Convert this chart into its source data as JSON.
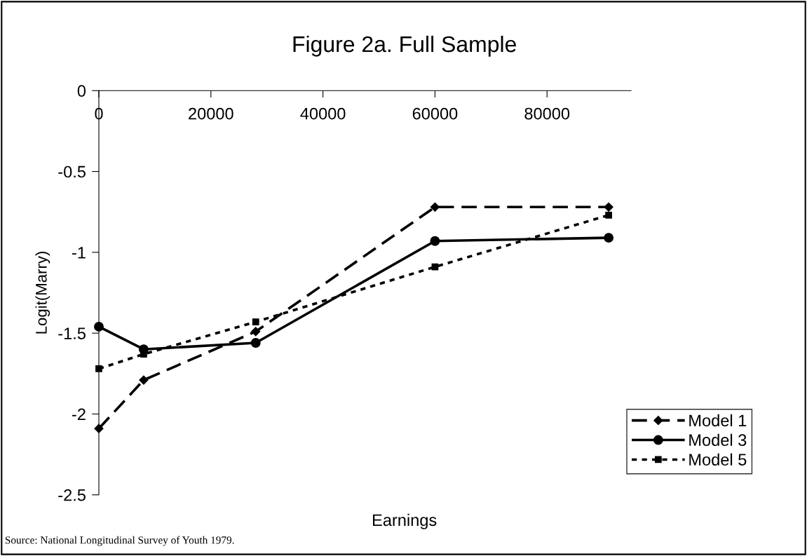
{
  "chart_data": {
    "type": "line",
    "title": "Figure 2a. Full Sample",
    "xlabel": "Earnings",
    "ylabel": "Logit(Marry)",
    "x": [
      0,
      8000,
      28000,
      60000,
      91000
    ],
    "series": [
      {
        "name": "Model 1",
        "color": "#000000",
        "line_style": "dashed",
        "marker": "diamond",
        "values": [
          -2.09,
          -1.79,
          -1.49,
          -0.72,
          -0.72
        ]
      },
      {
        "name": "Model 3",
        "color": "#000000",
        "line_style": "solid",
        "marker": "circle",
        "values": [
          -1.46,
          -1.6,
          -1.56,
          -0.93,
          -0.91
        ]
      },
      {
        "name": "Model 5",
        "color": "#000000",
        "line_style": "dotted",
        "marker": "square",
        "values": [
          -1.72,
          -1.63,
          -1.43,
          -1.09,
          -0.77
        ]
      }
    ],
    "xlim": [
      0,
      95000
    ],
    "xticks": [
      0,
      20000,
      40000,
      60000,
      80000
    ],
    "ylim": [
      -2.5,
      0
    ],
    "yticks": [
      {
        "value": -2.5,
        "label": "-2.5"
      },
      {
        "value": -2,
        "label": "-2"
      },
      {
        "value": -1.5,
        "label": "-1.5"
      },
      {
        "value": -1,
        "label": "-1"
      },
      {
        "value": -0.5,
        "label": "-0.5"
      },
      0
    ],
    "grid": false,
    "legend": "bottom right",
    "annotations": [
      "Source: National Longitudinal Survey of Youth 1979."
    ]
  }
}
